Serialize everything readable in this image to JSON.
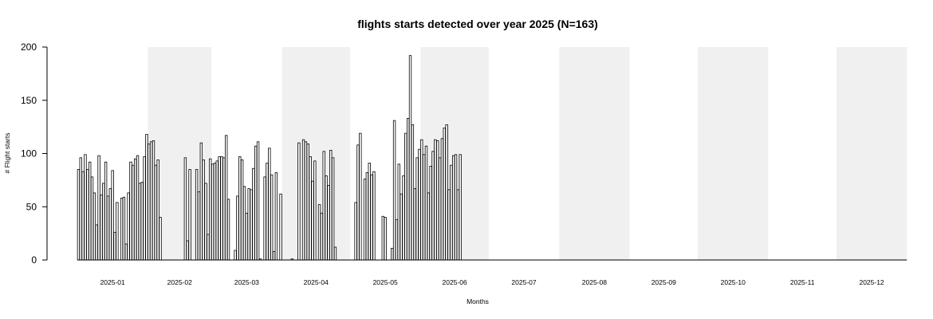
{
  "chart_data": {
    "type": "bar",
    "title": "flights starts detected over year 2025 (N=163)",
    "xlabel": "Months",
    "ylabel": "# Flight starts",
    "ylim": [
      0,
      200
    ],
    "yticks": [
      0,
      50,
      100,
      150,
      200
    ],
    "grid": false,
    "month_bands": "alternating grey shading on even months",
    "months": [
      "2025-01",
      "2025-02",
      "2025-03",
      "2025-04",
      "2025-05",
      "2025-06",
      "2025-07",
      "2025-08",
      "2025-09",
      "2025-10",
      "2025-11",
      "2025-12"
    ],
    "month_days": [
      31,
      28,
      31,
      30,
      31,
      30,
      31,
      31,
      30,
      31,
      30,
      31
    ],
    "colors": {
      "bar_fill": "#ffffff",
      "bar_stroke": "#000000",
      "band": "#f0f0f0"
    },
    "daily_values": [
      85,
      96,
      83,
      99,
      85,
      92,
      78,
      63,
      33,
      98,
      61,
      72,
      92,
      60,
      67,
      84,
      26,
      54,
      0,
      58,
      59,
      15,
      63,
      92,
      89,
      95,
      98,
      72,
      73,
      97,
      118,
      109,
      111,
      112,
      89,
      94,
      40,
      0,
      0,
      0,
      0,
      0,
      0,
      0,
      0,
      0,
      0,
      96,
      18,
      85,
      0,
      0,
      85,
      64,
      110,
      94,
      72,
      24,
      95,
      90,
      91,
      93,
      97,
      97,
      96,
      117,
      57,
      0,
      0,
      9,
      60,
      97,
      94,
      69,
      44,
      67,
      66,
      86,
      107,
      111,
      1,
      0,
      78,
      91,
      105,
      80,
      8,
      82,
      0,
      62,
      0,
      0,
      0,
      0,
      1,
      0,
      0,
      110,
      0,
      113,
      111,
      109,
      97,
      74,
      93,
      0,
      52,
      44,
      102,
      79,
      70,
      103,
      96,
      12,
      0,
      0,
      0,
      0,
      0,
      0,
      0,
      0,
      54,
      108,
      119,
      0,
      76,
      82,
      91,
      80,
      83,
      0,
      0,
      0,
      41,
      40,
      0,
      0,
      11,
      131,
      38,
      90,
      62,
      79,
      119,
      133,
      192,
      127,
      67,
      96,
      104,
      113,
      99,
      107,
      63,
      88,
      102,
      113,
      112,
      96,
      114,
      124,
      127,
      66,
      89,
      98,
      99,
      66,
      99
    ]
  }
}
